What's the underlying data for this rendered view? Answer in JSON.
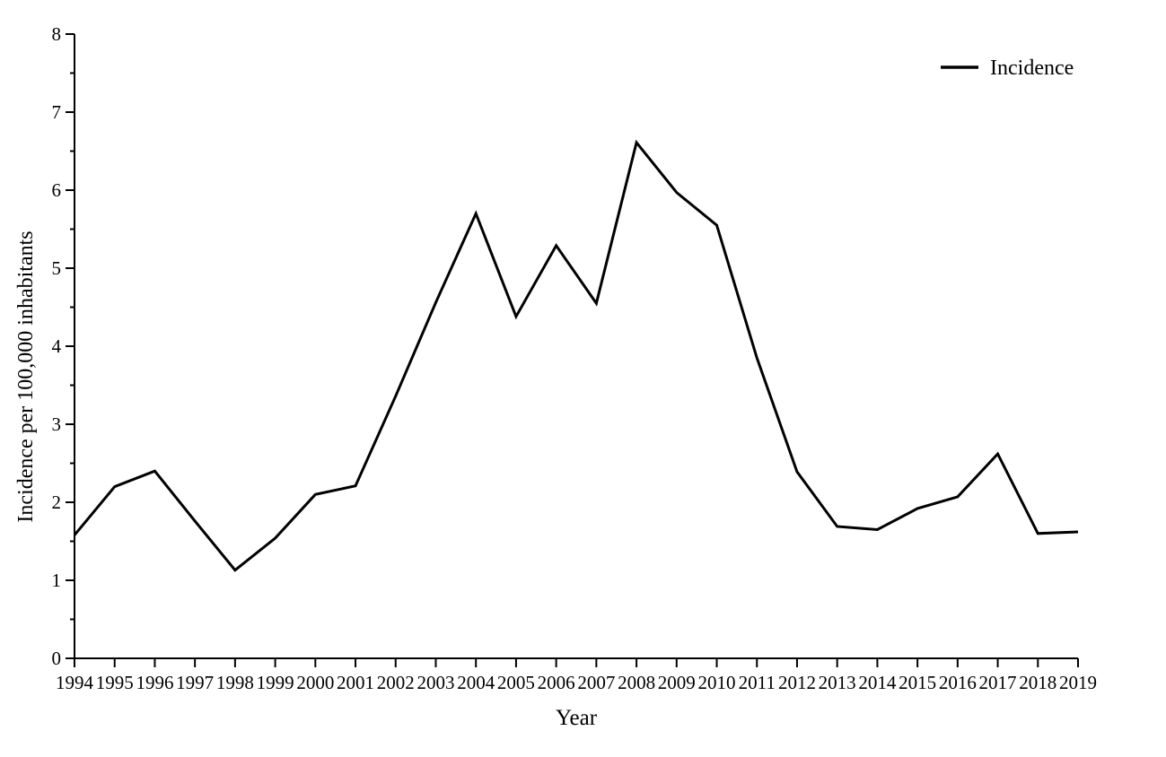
{
  "page": {
    "background_color": "#ffffff",
    "text_color": "#000000"
  },
  "chart_data": {
    "type": "line",
    "title": "",
    "xlabel": "Year",
    "ylabel": "Incidence per 100,000 inhabitants",
    "x": [
      1994,
      1995,
      1996,
      1997,
      1998,
      1999,
      2000,
      2001,
      2002,
      2003,
      2004,
      2005,
      2006,
      2007,
      2008,
      2009,
      2010,
      2011,
      2012,
      2013,
      2014,
      2015,
      2016,
      2017,
      2018,
      2019
    ],
    "series": [
      {
        "name": "Incidence",
        "color": "#000000",
        "values": [
          1.58,
          2.2,
          2.4,
          1.76,
          1.13,
          1.54,
          2.1,
          2.21,
          3.36,
          4.56,
          5.7,
          4.38,
          5.29,
          4.55,
          6.61,
          5.97,
          5.55,
          3.85,
          2.39,
          1.69,
          1.65,
          1.92,
          2.07,
          2.62,
          1.6,
          1.62
        ]
      }
    ],
    "ylim": [
      0,
      8
    ],
    "y_tick_labels": [
      "0",
      "1",
      "2",
      "3",
      "4",
      "5",
      "6",
      "7",
      "8"
    ],
    "y_major_tick_step": 1,
    "y_minor_tick_step": 0.5,
    "grid": false,
    "legend_position": "top-right",
    "legend_entries": [
      "Incidence"
    ]
  }
}
